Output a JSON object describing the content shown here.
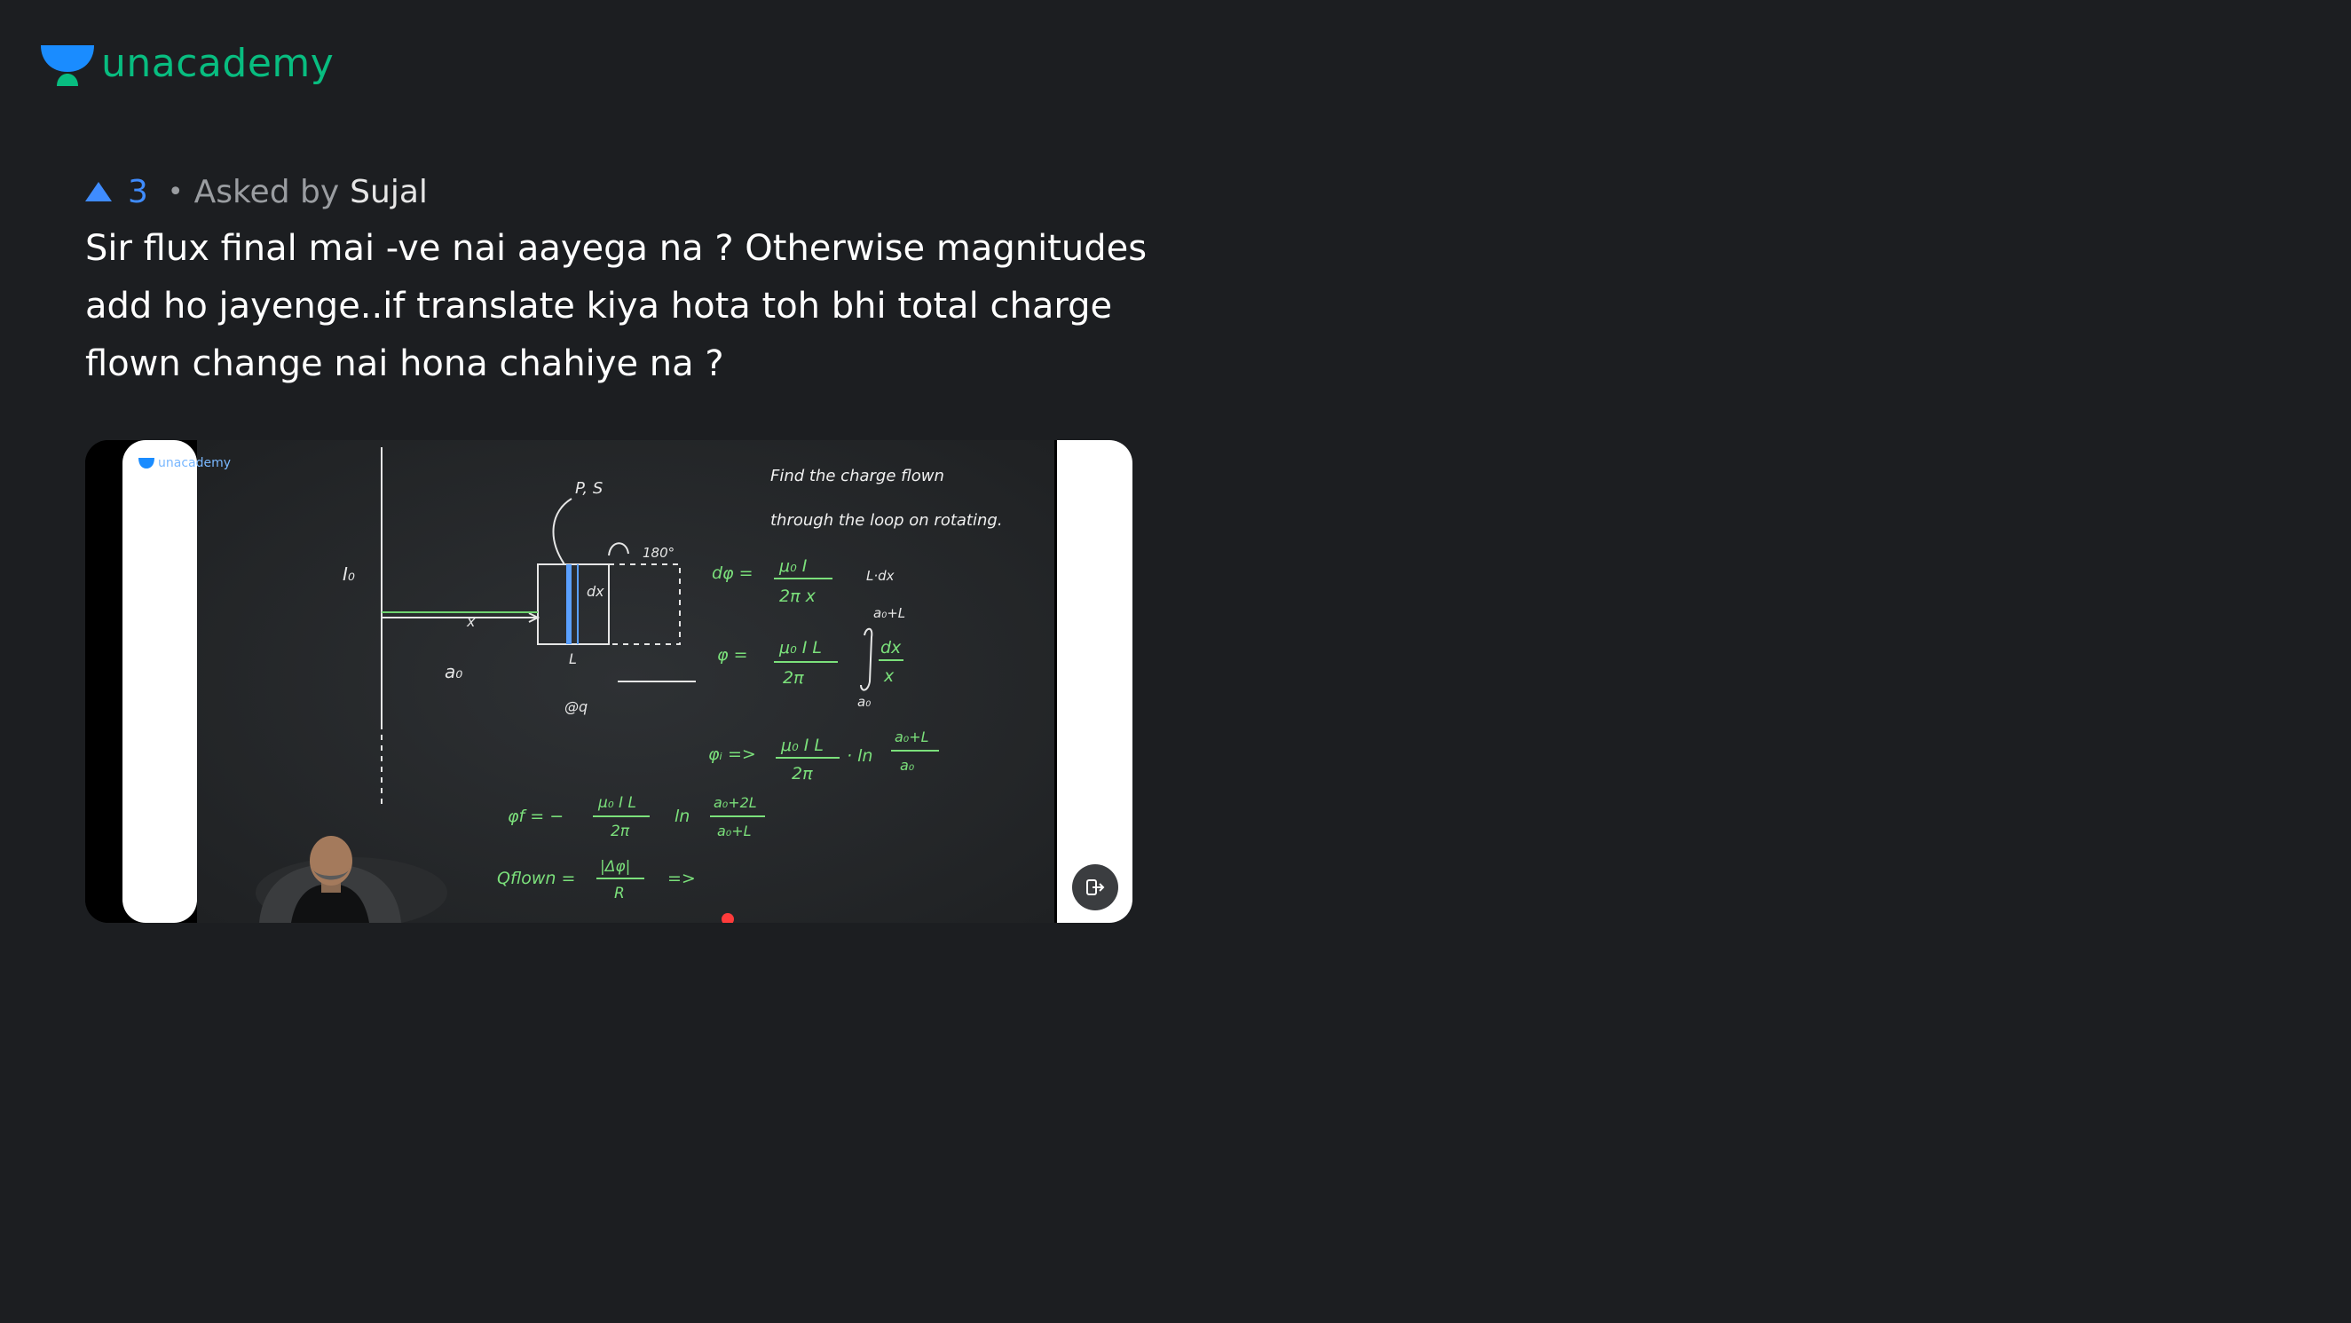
{
  "brand": {
    "name": "unacademy",
    "accent": "#08bd80",
    "icon": "unacademy-logo-icon"
  },
  "question": {
    "upvotes": "3",
    "dot": "•",
    "asked_label": "Asked by",
    "asker": "Sujal",
    "text": "Sir flux final mai -ve nai aayega na ? Otherwise magnitudes add ho jayenge..if translate kiya hota toh bhi total charge flown change nai hona chahiye na ?"
  },
  "video": {
    "board_title_line1": "Find the charge flown",
    "board_title_line2": "through the loop on rotating.",
    "eq1_lhs": "dφ =",
    "eq1_num": "μ₀ I",
    "eq1_den": "2π x",
    "eq1_side": "L·dx",
    "eq2_lhs": "φ =",
    "eq2_num": "μ₀ I L",
    "eq2_den": "2π",
    "eq2_int_top": "a₀+L",
    "eq2_int_bot": "a₀",
    "eq2_frac_num": "dx",
    "eq2_frac_den": "x",
    "eq3_lhs": "φᵢ =>",
    "eq3_num": "μ₀ I L",
    "eq3_den": "2π",
    "eq3_ln": "· ln",
    "eq3_ln_num": "a₀+L",
    "eq3_ln_den": "a₀",
    "eq4_lhs": "φf = −",
    "eq4_num": "μ₀ I L",
    "eq4_den": "2π",
    "eq4_ln": "ln",
    "eq4_ln_num": "a₀+2L",
    "eq4_ln_den": "a₀+L",
    "eq5_lhs": "Qflown =",
    "eq5_num": "|Δφ|",
    "eq5_den": "R",
    "eq5_arrow": "=>",
    "label_io": "I₀",
    "label_x": "x",
    "label_a0": "a₀",
    "label_L": "L",
    "label_dx": "dx",
    "label_ps": "P, S",
    "label_180": "180°",
    "label_aq": "@q",
    "watermark": "unacademy"
  }
}
